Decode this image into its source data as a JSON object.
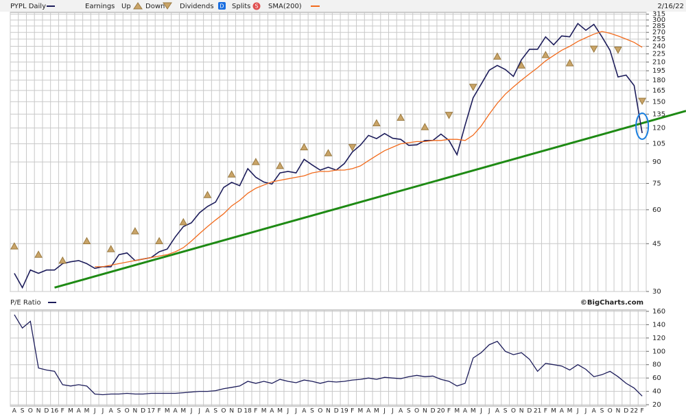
{
  "chart_data": [
    {
      "type": "line",
      "log_scale": true,
      "grid": true,
      "date": "2/16/22",
      "categories": [
        "A",
        "S",
        "O",
        "N",
        "D",
        "16",
        "F",
        "M",
        "A",
        "M",
        "J",
        "J",
        "A",
        "S",
        "O",
        "N",
        "D",
        "17",
        "F",
        "M",
        "A",
        "M",
        "J",
        "J",
        "A",
        "S",
        "O",
        "N",
        "D",
        "18",
        "F",
        "M",
        "A",
        "M",
        "J",
        "J",
        "A",
        "S",
        "O",
        "N",
        "D",
        "19",
        "F",
        "M",
        "A",
        "M",
        "J",
        "J",
        "A",
        "S",
        "O",
        "N",
        "D",
        "20",
        "F",
        "M",
        "A",
        "M",
        "J",
        "J",
        "A",
        "S",
        "O",
        "N",
        "D",
        "21",
        "F",
        "M",
        "A",
        "M",
        "J",
        "J",
        "A",
        "S",
        "O",
        "N",
        "D",
        "22",
        "F"
      ],
      "series": [
        {
          "name": "PYPL Daily",
          "color": "#1c1c5a",
          "values": [
            35,
            31,
            36,
            35,
            36,
            36,
            38,
            38.6,
            39,
            38,
            36.5,
            37,
            37,
            41,
            41.6,
            39,
            39.5,
            40,
            42,
            43,
            47.7,
            52,
            53.7,
            58.5,
            61.7,
            64,
            72.5,
            75.7,
            73.6,
            85,
            79,
            75.9,
            74.6,
            82,
            83,
            82,
            92,
            87.8,
            84,
            86,
            84,
            88.8,
            98,
            103.8,
            112.7,
            109.7,
            114.5,
            110,
            109,
            103.6,
            104,
            108,
            108,
            114,
            108,
            95.7,
            123,
            155,
            174,
            196,
            204,
            197,
            186,
            214,
            234,
            234,
            260,
            243,
            262,
            260,
            291,
            275,
            289,
            260,
            232,
            185,
            188,
            172,
            115
          ]
        },
        {
          "name": "SMA(200)",
          "color": "#f26a1b",
          "values": [
            null,
            null,
            null,
            null,
            null,
            null,
            null,
            null,
            null,
            null,
            37,
            37,
            37.5,
            38,
            38.5,
            39,
            39.5,
            40,
            40.5,
            41,
            42,
            43.5,
            46,
            49,
            52,
            55,
            58,
            62,
            65,
            69,
            72,
            74,
            76,
            77,
            78,
            79,
            80,
            82,
            83,
            83,
            84,
            84,
            85,
            87,
            91,
            95,
            99,
            102,
            105,
            106,
            107,
            107,
            108,
            108,
            109,
            109,
            108,
            113,
            122,
            135,
            148,
            160,
            170,
            180,
            190,
            200,
            212,
            222,
            232,
            240,
            250,
            258,
            266,
            272,
            268,
            262,
            255,
            248,
            238
          ]
        }
      ],
      "earnings": {
        "label": "Earnings",
        "series": [
          {
            "name": "Up",
            "color": "#c9a468",
            "values": [
              44,
              null,
              null,
              41,
              null,
              null,
              39,
              null,
              null,
              46,
              null,
              null,
              43,
              null,
              null,
              50,
              null,
              null,
              46,
              null,
              null,
              54,
              null,
              null,
              68,
              null,
              null,
              81,
              null,
              null,
              90,
              null,
              null,
              87,
              null,
              null,
              102,
              null,
              null,
              97,
              null,
              null,
              null,
              null,
              null,
              125,
              null,
              null,
              131,
              null,
              null,
              121,
              null,
              null,
              null,
              null,
              null,
              null,
              null,
              null,
              220,
              null,
              null,
              204,
              null,
              null,
              223,
              null,
              null,
              208,
              null,
              null,
              null,
              null,
              null,
              null,
              null,
              null,
              null
            ]
          },
          {
            "name": "Down",
            "color": "#c9a468",
            "values": [
              null,
              null,
              null,
              null,
              null,
              null,
              null,
              null,
              null,
              null,
              null,
              null,
              null,
              null,
              null,
              null,
              null,
              null,
              null,
              null,
              null,
              null,
              null,
              null,
              null,
              null,
              null,
              null,
              null,
              null,
              null,
              null,
              null,
              null,
              null,
              null,
              null,
              null,
              null,
              null,
              null,
              null,
              102,
              null,
              null,
              null,
              null,
              null,
              null,
              null,
              null,
              null,
              null,
              null,
              134,
              null,
              null,
              170,
              null,
              null,
              null,
              null,
              null,
              null,
              null,
              null,
              null,
              null,
              null,
              null,
              null,
              null,
              235,
              null,
              null,
              233,
              null,
              null,
              151
            ]
          }
        ]
      },
      "dividends": {
        "name": "Dividends",
        "icon": "D",
        "color": "#1a6ee0"
      },
      "splits": {
        "name": "Splits",
        "icon": "S",
        "color": "#e05050"
      },
      "trendline": {
        "color": "#1e8a14",
        "values": [
          null,
          null,
          null,
          null,
          null,
          31,
          null,
          null,
          null,
          null,
          null,
          null,
          null,
          null,
          null,
          null,
          null,
          null,
          null,
          null,
          null,
          null,
          null,
          null,
          null,
          null,
          null,
          null,
          null,
          null,
          null,
          null,
          null,
          null,
          null,
          null,
          null,
          null,
          null,
          null,
          null,
          null,
          null,
          null,
          null,
          null,
          null,
          null,
          null,
          null,
          null,
          null,
          null,
          null,
          null,
          null,
          null,
          null,
          null,
          null,
          null,
          null,
          null,
          null,
          null,
          null,
          null,
          null,
          null,
          null,
          null,
          null,
          null,
          null,
          null,
          null,
          null,
          null,
          125
        ]
      },
      "ylim": [
        30,
        320
      ],
      "yticks": [
        30,
        45,
        60,
        75,
        90,
        105,
        120,
        135,
        150,
        165,
        180,
        195,
        210,
        225,
        240,
        255,
        270,
        285,
        300,
        315
      ]
    },
    {
      "type": "line",
      "grid": true,
      "credit": "©BigCharts.com",
      "series": [
        {
          "name": "P/E Ratio",
          "color": "#1c1c5a",
          "values": [
            155,
            135,
            145,
            75,
            72,
            70,
            50,
            48,
            50,
            48,
            36,
            35,
            36,
            36,
            37,
            36,
            36,
            37,
            37,
            37,
            37,
            38,
            39,
            40,
            40,
            41,
            44,
            46,
            48,
            55,
            52,
            55,
            52,
            58,
            55,
            53,
            57,
            55,
            52,
            55,
            54,
            55,
            57,
            58,
            60,
            58,
            61,
            60,
            59,
            62,
            64,
            62,
            63,
            58,
            55,
            48,
            52,
            90,
            98,
            110,
            115,
            100,
            95,
            98,
            88,
            70,
            82,
            80,
            78,
            72,
            80,
            73,
            62,
            65,
            70,
            62,
            52,
            45,
            33
          ]
        }
      ],
      "ylim": [
        18,
        162
      ],
      "yticks": [
        20,
        40,
        60,
        80,
        100,
        120,
        140,
        160
      ]
    }
  ]
}
